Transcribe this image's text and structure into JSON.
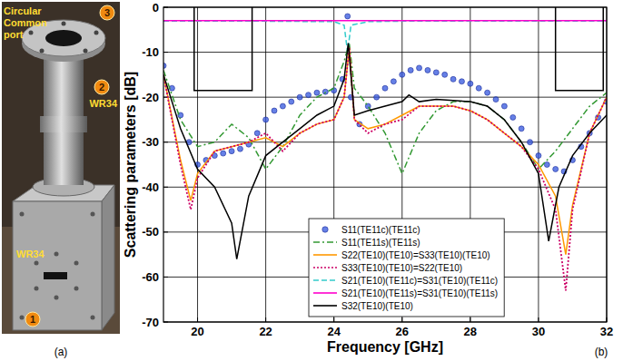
{
  "photo": {
    "port_label": "Circular Common port",
    "ports": [
      {
        "number": 3
      },
      {
        "number": 2,
        "label": "WR34"
      },
      {
        "number": 1,
        "label": "WR34"
      }
    ]
  },
  "captions": [
    "(a)",
    "(b)"
  ],
  "chart_data": {
    "type": "line",
    "xlabel": "Frequency [GHz]",
    "ylabel": "Scattering parameters [dB]",
    "xlim": [
      19,
      32
    ],
    "ylim": [
      -70,
      0
    ],
    "xticks": [
      20,
      22,
      24,
      26,
      28,
      30,
      32
    ],
    "yticks": [
      -70,
      -60,
      -50,
      -40,
      -30,
      -20,
      -10,
      0
    ],
    "grid": true,
    "legend": "lower center",
    "series": [
      {
        "name": "S11(TE11c)(TE11c)",
        "color": "#3355dd",
        "line_style": "none",
        "marker": "circle",
        "x": [
          19,
          19.25,
          19.5,
          19.75,
          20,
          20.25,
          20.5,
          20.75,
          21,
          21.25,
          21.5,
          21.75,
          22,
          22.25,
          22.5,
          22.75,
          23,
          23.25,
          23.5,
          23.75,
          24,
          24.25,
          24.4,
          24.5,
          24.75,
          25,
          25.25,
          25.5,
          25.75,
          26,
          26.25,
          26.5,
          26.75,
          27,
          27.25,
          27.5,
          27.75,
          28,
          28.25,
          28.5,
          28.75,
          29,
          29.25,
          29.5,
          29.75,
          30,
          30.25,
          30.5,
          30.75,
          31,
          31.25,
          31.5,
          31.75,
          32
        ],
        "values": [
          -13,
          -18,
          -24,
          -30,
          -35,
          -34,
          -33,
          -32.5,
          -32,
          -31.5,
          -30.5,
          -28,
          -25,
          -23,
          -22,
          -21,
          -20,
          -19.5,
          -19,
          -18.8,
          -18.5,
          -16,
          -2,
          -20,
          -26,
          -22,
          -20,
          -18,
          -16.5,
          -15,
          -14,
          -13.5,
          -14,
          -14.5,
          -15,
          -16,
          -16.5,
          -17,
          -18,
          -19,
          -20.5,
          -22,
          -24.5,
          -27,
          -30,
          -33,
          -35,
          -36,
          -36.5,
          -34,
          -31,
          -28,
          -24.5,
          -21
        ]
      },
      {
        "name": "S11(TE11s)(TE11s)",
        "color": "#339933",
        "line_style": "dash-dot",
        "x": [
          19,
          19.5,
          20,
          20.5,
          21,
          21.5,
          22,
          22.5,
          23,
          23.5,
          24,
          24.3,
          24.45,
          24.6,
          25,
          25.5,
          26,
          26.5,
          27,
          27.5,
          28,
          28.5,
          29,
          29.5,
          30,
          30.5,
          31,
          31.5,
          32
        ],
        "values": [
          -14,
          -25,
          -31,
          -30,
          -26,
          -29,
          -36,
          -31,
          -24,
          -20,
          -18,
          -12,
          -8,
          -18,
          -22,
          -28,
          -37,
          -28,
          -23,
          -21,
          -21,
          -22,
          -25,
          -30,
          -36,
          -32,
          -27,
          -22,
          -19
        ]
      },
      {
        "name": "S22(TE10)(TE10)=S33(TE10)(TE10)",
        "color": "#ff9900",
        "line_style": "solid",
        "x": [
          19,
          19.5,
          19.8,
          20,
          20.5,
          21,
          21.5,
          22,
          22.5,
          23,
          23.5,
          24,
          24.3,
          24.45,
          24.6,
          25,
          25.5,
          26,
          26.5,
          27,
          27.5,
          28,
          28.5,
          29,
          29.5,
          30,
          30.5,
          30.8,
          31,
          31.5,
          32
        ],
        "values": [
          -15,
          -34,
          -43,
          -37,
          -32,
          -31,
          -30,
          -29,
          -31,
          -28,
          -26,
          -25,
          -20,
          -9,
          -25,
          -27,
          -26,
          -24,
          -22,
          -22,
          -22,
          -23,
          -25,
          -28,
          -31,
          -35,
          -42,
          -55,
          -44,
          -28,
          -20
        ]
      },
      {
        "name": "S33(TE10)(TE10)=S22(TE10)",
        "color": "#cc0066",
        "line_style": "dotted",
        "x": [
          19,
          19.5,
          19.8,
          20,
          20.5,
          21,
          21.5,
          22,
          22.5,
          23,
          23.5,
          24,
          24.3,
          24.45,
          24.6,
          25,
          25.5,
          26,
          26.5,
          27,
          27.5,
          28,
          28.5,
          29,
          29.5,
          30,
          30.5,
          30.8,
          31,
          31.5,
          32
        ],
        "values": [
          -15,
          -35,
          -45,
          -38,
          -32,
          -31,
          -30,
          -28,
          -32,
          -28,
          -26,
          -25,
          -20,
          -9,
          -25,
          -28,
          -26,
          -25,
          -22,
          -22,
          -22,
          -23,
          -25,
          -28,
          -31,
          -36,
          -45,
          -63,
          -45,
          -28,
          -20
        ]
      },
      {
        "name": "S21(TE10)(TE11c)=S31(TE10)(TE11c)",
        "color": "#33cccc",
        "line_style": "dashed",
        "x": [
          19,
          20,
          22,
          24,
          24.3,
          24.4,
          24.5,
          25,
          26,
          28,
          30,
          32
        ],
        "values": [
          -3.1,
          -3.1,
          -3.1,
          -3.2,
          -4,
          -10,
          -4,
          -3.2,
          -3.1,
          -3.1,
          -3.1,
          -3.1
        ]
      },
      {
        "name": "S21(TE10)(TE11s)=S31(TE10)(TE11s)",
        "color": "#ff00cc",
        "line_style": "solid",
        "x": [
          19,
          32
        ],
        "values": [
          -3,
          -3
        ]
      },
      {
        "name": "S32(TE10)(TE10)",
        "color": "#000000",
        "line_style": "solid",
        "x": [
          19,
          19.5,
          20,
          20.5,
          21,
          21.15,
          21.5,
          22,
          22.5,
          23,
          23.5,
          24,
          24.3,
          24.42,
          24.6,
          25,
          25.5,
          26,
          26.2,
          26.5,
          27,
          28,
          28.5,
          29,
          29.5,
          30,
          30.3,
          30.6,
          31,
          31.5,
          32
        ],
        "values": [
          -15,
          -27,
          -36,
          -40,
          -48,
          -56,
          -42,
          -33,
          -30,
          -27,
          -24,
          -22,
          -16,
          -8,
          -24,
          -23,
          -22,
          -21,
          -19.5,
          -21,
          -20.5,
          -21,
          -22,
          -25,
          -30,
          -37,
          -52,
          -40,
          -33,
          -28,
          -24
        ]
      },
      {
        "color": "#000000",
        "line_style": "solid",
        "x": [
          19.9,
          19.9,
          21.6,
          21.6,
          26,
          30.5,
          30.5,
          31.9,
          31.9
        ],
        "values": [
          0,
          -18.5,
          -18.5,
          0,
          null,
          0,
          -18.5,
          -18.5,
          0
        ]
      }
    ]
  }
}
